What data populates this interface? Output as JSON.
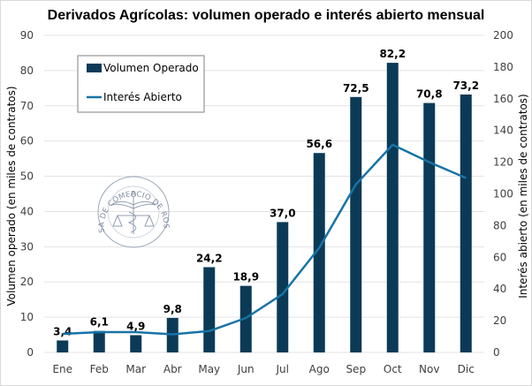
{
  "chart_data": {
    "type": "bar",
    "title": "Derivados Agrícolas: volumen operado e interés abierto mensual",
    "xlabel": "",
    "ylabel": "Volumen operado (en miles de contratos)",
    "y2label": "Interés abierto (en miles de contratos)",
    "ylim": [
      0,
      90
    ],
    "y2lim": [
      0,
      200
    ],
    "yticks": [
      "0",
      "10",
      "20",
      "30",
      "40",
      "50",
      "60",
      "70",
      "80",
      "90"
    ],
    "y2ticks": [
      "0",
      "20",
      "40",
      "60",
      "80",
      "100",
      "120",
      "140",
      "160",
      "180",
      "200"
    ],
    "grid": true,
    "legend_position": "top-left",
    "categories": [
      "Ene",
      "Feb",
      "Mar",
      "Abr",
      "May",
      "Jun",
      "Jul",
      "Ago",
      "Sep",
      "Oct",
      "Nov",
      "Dic"
    ],
    "series": [
      {
        "name": "Volumen Operado",
        "type": "bar",
        "axis": "left",
        "color": "#0b3a56",
        "values": [
          3.4,
          6.1,
          4.9,
          9.8,
          24.2,
          18.9,
          37.0,
          56.6,
          72.5,
          82.2,
          70.8,
          73.2
        ],
        "labels": [
          "3,4",
          "6,1",
          "4,9",
          "9,8",
          "24,2",
          "18,9",
          "37,0",
          "56,6",
          "72,5",
          "82,2",
          "70,8",
          "73,2"
        ]
      },
      {
        "name": "Interés Abierto",
        "type": "line",
        "axis": "right",
        "color": "#1673a6",
        "values": [
          11.7,
          12.8,
          12.8,
          11.4,
          13.5,
          21.7,
          36.8,
          66,
          106,
          131,
          120,
          110
        ]
      }
    ],
    "watermark": "BOLSA DE COMERCIO DE ROSARIO"
  },
  "colors": {
    "bar": "#0b3a56",
    "line": "#1673a6",
    "grid": "#e3e3e3"
  }
}
